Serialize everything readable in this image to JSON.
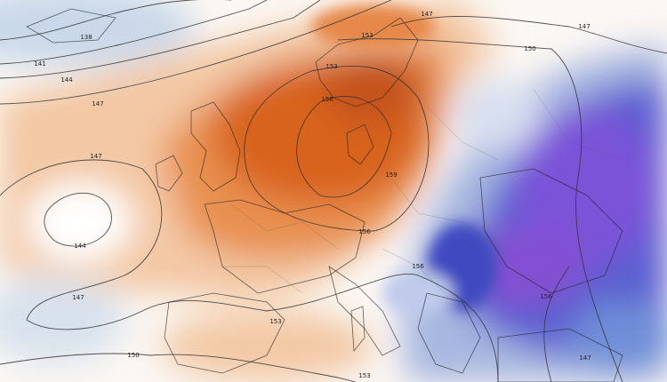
{
  "contour_labels": [
    138,
    141,
    144,
    147,
    147,
    153,
    150,
    147,
    153,
    156,
    159,
    147,
    144,
    147,
    156,
    156,
    156,
    153,
    150,
    153,
    147
  ]
}
